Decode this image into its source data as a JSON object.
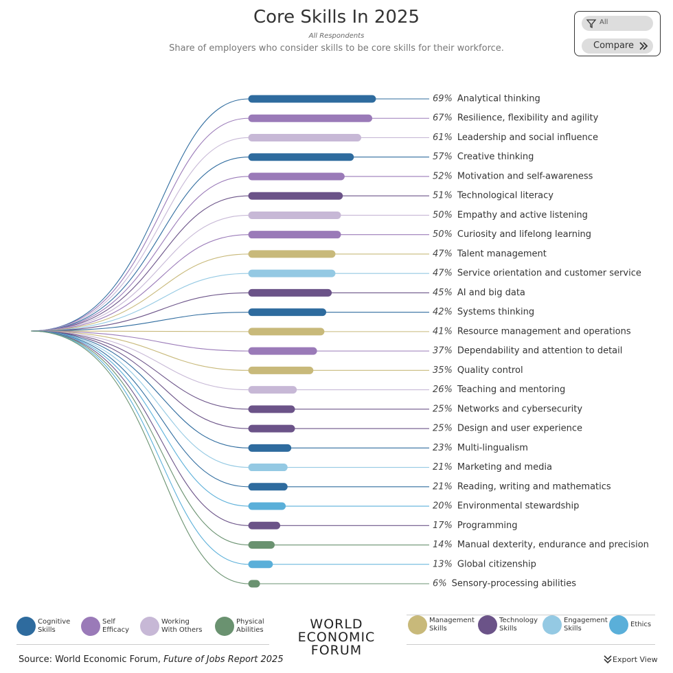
{
  "chart_data": {
    "type": "bar",
    "title": "Core Skills In 2025",
    "subtitle": "All Respondents",
    "description": "Share of employers who consider skills to be core skills for their workforce.",
    "categories": [
      "Analytical thinking",
      "Resilience, flexibility and agility",
      "Leadership and social influence",
      "Creative thinking",
      "Motivation and self-awareness",
      "Technological literacy",
      "Empathy and active listening",
      "Curiosity and lifelong learning",
      "Talent management",
      "Service orientation and customer service",
      "AI and big data",
      "Systems thinking",
      "Resource management and operations",
      "Dependability and attention to detail",
      "Quality control",
      "Teaching and mentoring",
      "Networks and cybersecurity",
      "Design and user experience",
      "Multi-lingualism",
      "Marketing and media",
      "Reading, writing and mathematics",
      "Environmental stewardship",
      "Programming",
      "Manual dexterity, endurance and precision",
      "Global citizenship",
      "Sensory-processing abilities"
    ],
    "values": [
      69,
      67,
      61,
      57,
      52,
      51,
      50,
      50,
      47,
      47,
      45,
      42,
      41,
      37,
      35,
      26,
      25,
      25,
      23,
      21,
      21,
      20,
      17,
      14,
      13,
      6
    ],
    "value_labels": [
      "69%",
      "67%",
      "61%",
      "57%",
      "52%",
      "51%",
      "50%",
      "50%",
      "47%",
      "47%",
      "45%",
      "42%",
      "41%",
      "37%",
      "35%",
      "26%",
      "25%",
      "25%",
      "23%",
      "21%",
      "21%",
      "20%",
      "17%",
      "14%",
      "13%",
      "6%"
    ],
    "colors": [
      "#2e6b9e",
      "#9a7ab8",
      "#c7b8d6",
      "#2e6b9e",
      "#9a7ab8",
      "#6b5388",
      "#c7b8d6",
      "#9a7ab8",
      "#c8b97a",
      "#94c9e3",
      "#6b5388",
      "#2e6b9e",
      "#c8b97a",
      "#9a7ab8",
      "#c8b97a",
      "#c7b8d6",
      "#6b5388",
      "#6b5388",
      "#2e6b9e",
      "#94c9e3",
      "#2e6b9e",
      "#5aafd9",
      "#6b5388",
      "#6a9270",
      "#5aafd9",
      "#6a9270"
    ],
    "legend": [
      {
        "name": "Cognitive Skills",
        "color": "#2e6b9e"
      },
      {
        "name": "Self Efficacy",
        "color": "#9a7ab8"
      },
      {
        "name": "Working With Others",
        "color": "#c7b8d6"
      },
      {
        "name": "Physical Abilities",
        "color": "#6a9270"
      },
      {
        "name": "Management Skills",
        "color": "#c8b97a"
      },
      {
        "name": "Technology Skills",
        "color": "#6b5388"
      },
      {
        "name": "Engagement Skills",
        "color": "#94c9e3"
      },
      {
        "name": "Ethics",
        "color": "#5aafd9"
      }
    ]
  },
  "controls": {
    "filter": "All",
    "compare": "Compare",
    "export": "Export View"
  },
  "logo": [
    "WORLD",
    "ECONOMIC",
    "FORUM"
  ],
  "source": {
    "text": "Source: World Economic Forum, ",
    "report": "Future of Jobs Report 2025"
  }
}
